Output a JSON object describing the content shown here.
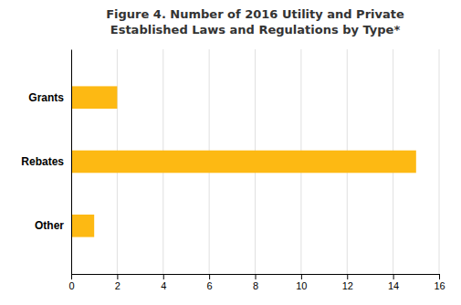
{
  "chart_data": {
    "type": "bar",
    "orientation": "horizontal",
    "title": "Figure 4. Number of 2016 Utility and Private\nEstablished Laws and Regulations by Type*",
    "categories": [
      "Grants",
      "Rebates",
      "Other"
    ],
    "values": [
      2,
      15,
      1
    ],
    "color": "#FDB913",
    "xlim": [
      0,
      16
    ],
    "xticks": [
      0,
      2,
      4,
      6,
      8,
      10,
      12,
      14,
      16
    ],
    "grid": true
  }
}
